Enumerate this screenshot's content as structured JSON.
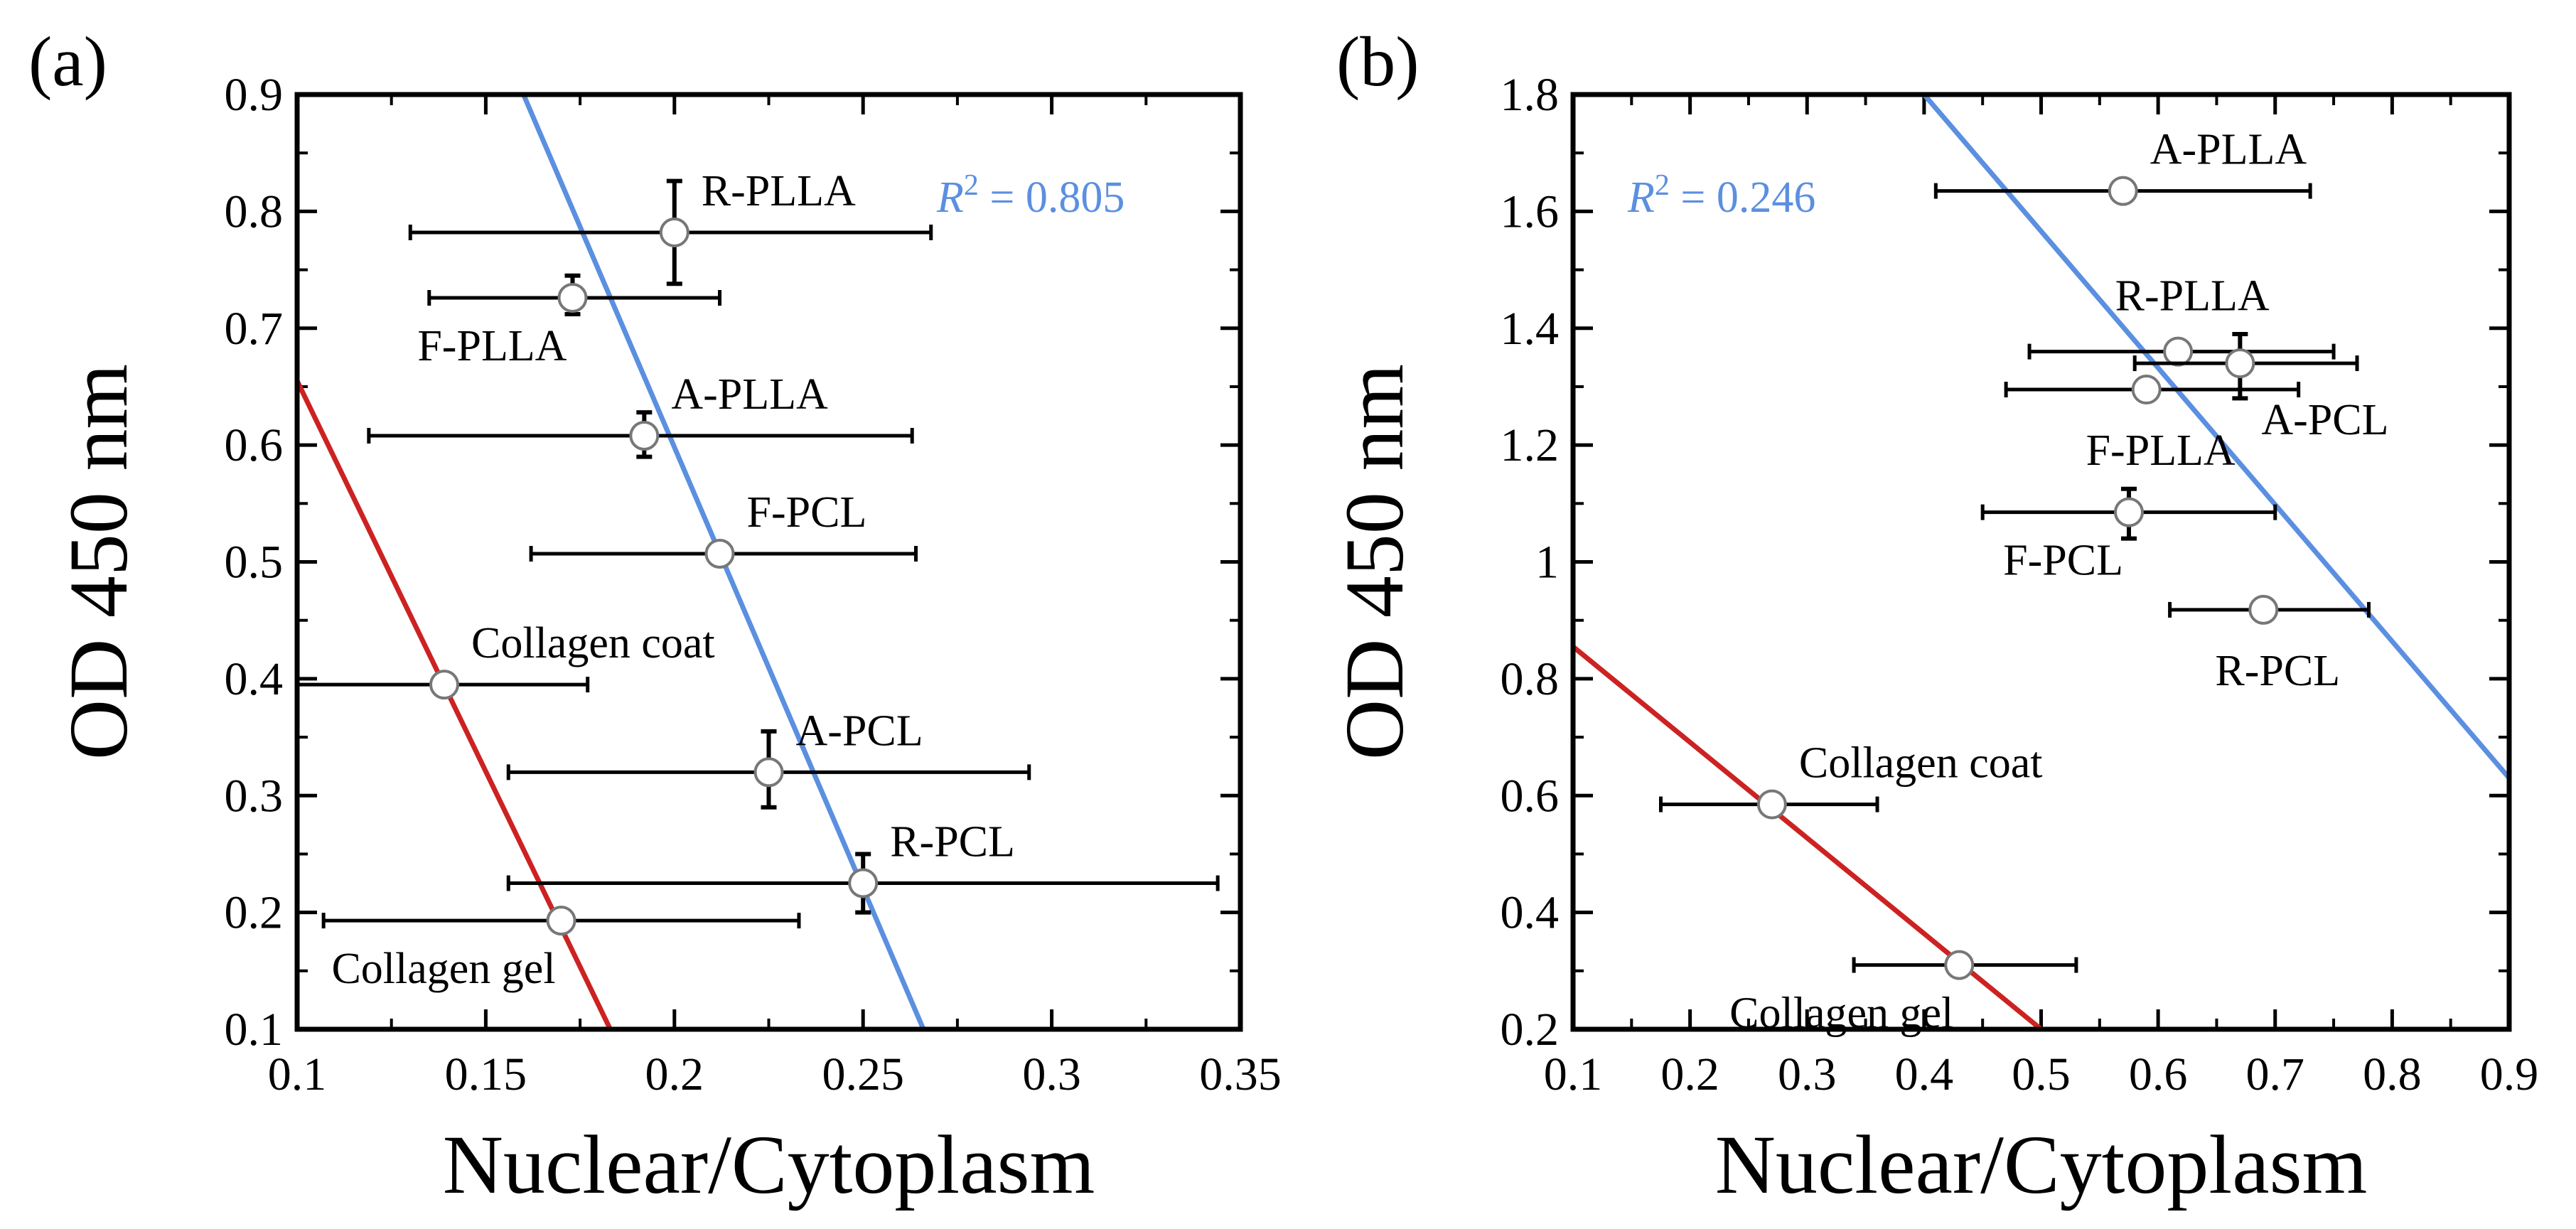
{
  "figure": {
    "panel_labels": [
      "(a)",
      "(b)"
    ]
  },
  "chart_data": [
    {
      "type": "scatter",
      "panel": "(a)",
      "xlabel": "Nuclear/Cytoplasm",
      "ylabel": "OD 450 nm",
      "xlim": [
        0.1,
        0.35
      ],
      "ylim": [
        0.1,
        0.9
      ],
      "xticks": [
        "0.1",
        "0.15",
        "0.2",
        "0.25",
        "0.3",
        "0.35"
      ],
      "yticks": [
        "0.1",
        "0.2",
        "0.3",
        "0.4",
        "0.5",
        "0.6",
        "0.7",
        "0.8",
        "0.9"
      ],
      "grid": false,
      "annotation": {
        "r2_prefix": "R",
        "r2_sup": "2",
        "r2_value": " = 0.805",
        "color": "#5b8fe0"
      },
      "points": [
        {
          "label": "R-PLLA",
          "x": 0.2,
          "y": 0.782,
          "x_err_low": 0.13,
          "x_err_high": 0.268,
          "y_err_low": 0.738,
          "y_err_high": 0.826,
          "label_pos": "above-right"
        },
        {
          "label": "F-PLLA",
          "x": 0.173,
          "y": 0.726,
          "x_err_low": 0.135,
          "x_err_high": 0.212,
          "y_err_low": 0.712,
          "y_err_high": 0.745,
          "label_pos": "below-left"
        },
        {
          "label": "A-PLLA",
          "x": 0.192,
          "y": 0.608,
          "x_err_low": 0.119,
          "x_err_high": 0.263,
          "y_err_low": 0.59,
          "y_err_high": 0.628,
          "label_pos": "above-right"
        },
        {
          "label": "F-PCL",
          "x": 0.212,
          "y": 0.507,
          "x_err_low": 0.162,
          "x_err_high": 0.264,
          "label_pos": "above-right"
        },
        {
          "label": "Collagen coat",
          "x": 0.139,
          "y": 0.395,
          "x_err_low": 0.1,
          "x_err_high": 0.177,
          "label_pos": "above-right"
        },
        {
          "label": "A-PCL",
          "x": 0.225,
          "y": 0.32,
          "x_err_low": 0.156,
          "x_err_high": 0.294,
          "y_err_low": 0.29,
          "y_err_high": 0.355,
          "label_pos": "above-right"
        },
        {
          "label": "R-PCL",
          "x": 0.25,
          "y": 0.225,
          "x_err_low": 0.156,
          "x_err_high": 0.344,
          "y_err_low": 0.2,
          "y_err_high": 0.25,
          "label_pos": "above-right"
        },
        {
          "label": "Collagen gel",
          "x": 0.17,
          "y": 0.193,
          "x_err_low": 0.107,
          "x_err_high": 0.233,
          "label_pos": "below-left"
        }
      ],
      "fit_lines": [
        {
          "color": "#cc2222",
          "x1": 0.1,
          "y1": 0.655,
          "x2": 0.183,
          "y2": 0.1
        },
        {
          "color": "#5b8fe0",
          "x1": 0.16,
          "y1": 0.9,
          "x2": 0.266,
          "y2": 0.1
        }
      ]
    },
    {
      "type": "scatter",
      "panel": "(b)",
      "xlabel": "Nuclear/Cytoplasm",
      "ylabel": "OD 450 nm",
      "xlim": [
        0.1,
        0.9
      ],
      "ylim": [
        0.2,
        1.8
      ],
      "xticks": [
        "0.1",
        "0.2",
        "0.3",
        "0.4",
        "0.5",
        "0.6",
        "0.7",
        "0.8",
        "0.9"
      ],
      "yticks": [
        "0.2",
        "0.4",
        "0.6",
        "0.8",
        "1",
        "1.2",
        "1.4",
        "1.6",
        "1.8"
      ],
      "grid": false,
      "annotation": {
        "r2_prefix": "R",
        "r2_sup": "2",
        "r2_value": " = 0.246",
        "color": "#5b8fe0"
      },
      "points": [
        {
          "label": "A-PLLA",
          "x": 0.57,
          "y": 1.635,
          "x_err_low": 0.41,
          "x_err_high": 0.73,
          "label_pos": "above-right"
        },
        {
          "label": "R-PLLA",
          "x": 0.617,
          "y": 1.36,
          "x_err_low": 0.49,
          "x_err_high": 0.75,
          "label_pos": "above"
        },
        {
          "label": "A-PCL",
          "x": 0.67,
          "y": 1.34,
          "x_err_low": 0.58,
          "x_err_high": 0.77,
          "y_err_low": 1.28,
          "y_err_high": 1.39,
          "label_pos": "below-right"
        },
        {
          "label": "F-PLLA",
          "x": 0.59,
          "y": 1.295,
          "x_err_low": 0.47,
          "x_err_high": 0.72,
          "label_pos": "below"
        },
        {
          "label": "F-PCL",
          "x": 0.575,
          "y": 1.085,
          "x_err_low": 0.45,
          "x_err_high": 0.7,
          "y_err_low": 1.04,
          "y_err_high": 1.125,
          "label_pos": "below-left"
        },
        {
          "label": "R-PCL",
          "x": 0.69,
          "y": 0.918,
          "x_err_low": 0.61,
          "x_err_high": 0.78,
          "label_pos": "below"
        },
        {
          "label": "Collagen coat",
          "x": 0.27,
          "y": 0.585,
          "x_err_low": 0.175,
          "x_err_high": 0.36,
          "label_pos": "above-right"
        },
        {
          "label": "Collagen gel",
          "x": 0.43,
          "y": 0.31,
          "x_err_low": 0.34,
          "x_err_high": 0.53,
          "label_pos": "below-left"
        }
      ],
      "fit_lines": [
        {
          "color": "#cc2222",
          "x1": 0.1,
          "y1": 0.855,
          "x2": 0.5,
          "y2": 0.2
        },
        {
          "color": "#5b8fe0",
          "x1": 0.4,
          "y1": 1.8,
          "x2": 0.9,
          "y2": 0.63
        }
      ]
    }
  ]
}
